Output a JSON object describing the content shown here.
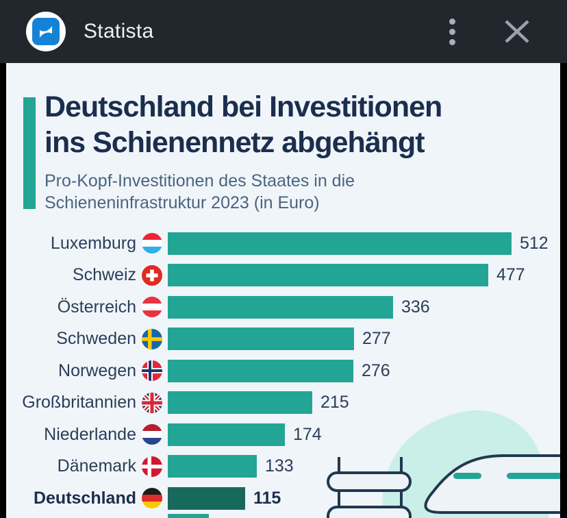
{
  "header": {
    "app_title": "Statista",
    "icons": {
      "logo": "statista-s-logo",
      "menu": "kebab-vertical-menu",
      "close": "close-x"
    }
  },
  "infographic": {
    "title_line1": "Deutschland bei Investitionen",
    "title_line2": "ins Schienennetz abgehängt",
    "subtitle_line1": "Pro-Kopf-Investitionen des Staates in die",
    "subtitle_line2": "Schieneninfrastruktur 2023 (in Euro)"
  },
  "chart_data": {
    "type": "bar",
    "orientation": "horizontal",
    "title": "Deutschland bei Investitionen ins Schienennetz abgehängt",
    "subtitle": "Pro-Kopf-Investitionen des Staates in die Schieneninfrastruktur 2023 (in Euro)",
    "unit": "Euro pro Kopf",
    "categories": [
      "Luxemburg",
      "Schweiz",
      "Österreich",
      "Schweden",
      "Norwegen",
      "Großbritannien",
      "Niederlande",
      "Dänemark",
      "Deutschland"
    ],
    "values": [
      512,
      477,
      336,
      277,
      276,
      215,
      174,
      133,
      115
    ],
    "value_labels_shown": true,
    "highlight_category": "Deutschland",
    "legend": "none",
    "axis_shown": false
  },
  "rows": [
    {
      "label": "Luxemburg",
      "flag": "luxembourg",
      "value": "512"
    },
    {
      "label": "Schweiz",
      "flag": "switzerland",
      "value": "477"
    },
    {
      "label": "Österreich",
      "flag": "austria",
      "value": "336"
    },
    {
      "label": "Schweden",
      "flag": "sweden",
      "value": "277"
    },
    {
      "label": "Norwegen",
      "flag": "norway",
      "value": "276"
    },
    {
      "label": "Großbritannien",
      "flag": "united-kingdom",
      "value": "215"
    },
    {
      "label": "Niederlande",
      "flag": "netherlands",
      "value": "174"
    },
    {
      "label": "Dänemark",
      "flag": "denmark",
      "value": "133"
    },
    {
      "label": "Deutschland",
      "flag": "germany",
      "value": "115"
    }
  ],
  "colors": {
    "bar": "#23a595",
    "bar_highlight": "#17695c",
    "accent": "#23a595",
    "title_text": "#1b2e4e",
    "subtitle_text": "#4a6481",
    "card_background": "#f0f5f9",
    "header_background": "#22272e",
    "statista_blue": "#1583d5",
    "illustration_blob": "#c9efe8",
    "illustration_outline": "#21384f"
  }
}
